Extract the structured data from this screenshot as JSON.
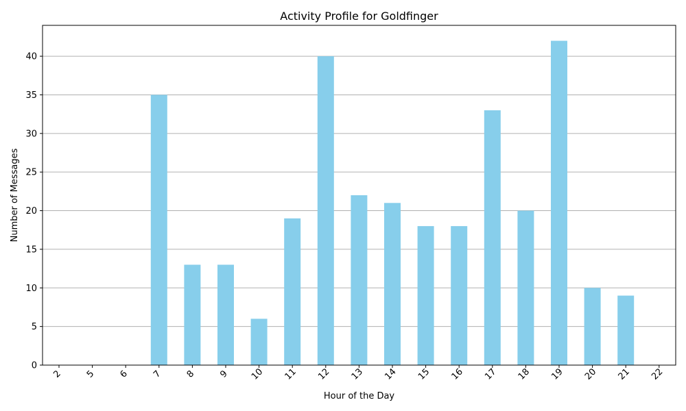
{
  "chart_data": {
    "type": "bar",
    "title": "Activity Profile for Goldfinger",
    "xlabel": "Hour of the Day",
    "ylabel": "Number of Messages",
    "categories": [
      "2",
      "5",
      "6",
      "7",
      "8",
      "9",
      "10",
      "11",
      "12",
      "13",
      "14",
      "15",
      "16",
      "17",
      "18",
      "19",
      "20",
      "21",
      "22"
    ],
    "values": [
      0,
      0,
      0,
      35,
      13,
      13,
      6,
      19,
      40,
      22,
      21,
      18,
      18,
      33,
      20,
      42,
      10,
      9,
      0
    ],
    "ylim": [
      0,
      44
    ],
    "yticks": [
      0,
      5,
      10,
      15,
      20,
      25,
      30,
      35,
      40
    ],
    "grid": "y",
    "legend": "none",
    "bar_color": "#87ceeb",
    "grid_color": "#b0b0b0"
  }
}
